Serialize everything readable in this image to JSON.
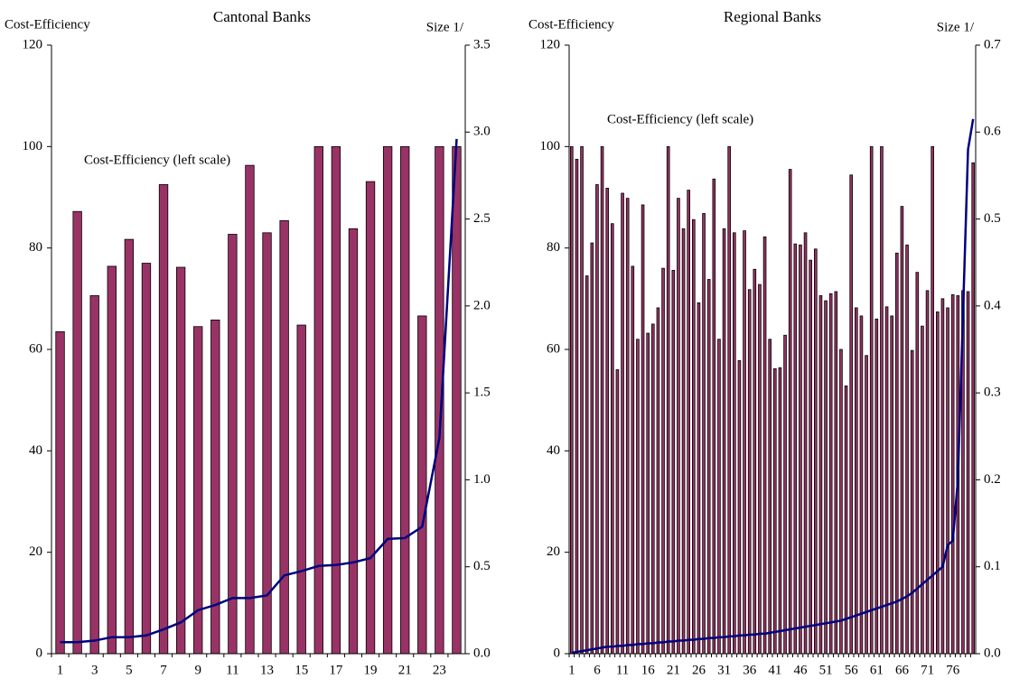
{
  "chart_data": [
    {
      "type": "bar",
      "title": "Cantonal Banks",
      "y_label": "Cost-Efficiency",
      "y2_label": "Size 1/",
      "annotation": "Cost-Efficiency (left scale)",
      "categories": [
        "1",
        null,
        "3",
        null,
        "5",
        null,
        "7",
        null,
        "9",
        null,
        "11",
        null,
        "13",
        null,
        "15",
        null,
        "17",
        null,
        "19",
        null,
        "21",
        null,
        "23",
        null
      ],
      "series": [
        {
          "type": "bar",
          "color": "#993366",
          "values": [
            63.5,
            87.2,
            70.6,
            76.4,
            81.7,
            77,
            92.5,
            76.2,
            64.5,
            65.8,
            82.7,
            96.3,
            83,
            85.4,
            64.8,
            100,
            100,
            83.8,
            93.1,
            100,
            100,
            66.6,
            100,
            100
          ]
        },
        {
          "type": "line",
          "axis": "y2",
          "color": "#000080",
          "values": [
            0.066,
            0.066,
            0.075,
            0.095,
            0.095,
            0.105,
            0.14,
            0.18,
            0.25,
            0.28,
            0.32,
            0.32,
            0.335,
            0.45,
            0.475,
            0.505,
            0.51,
            0.525,
            0.55,
            0.66,
            0.665,
            0.73,
            1.24,
            2.96
          ]
        }
      ],
      "ylim": [
        0,
        120
      ],
      "yticks": [
        0,
        20,
        40,
        60,
        80,
        100,
        120
      ],
      "y2lim": [
        0,
        3.5
      ],
      "y2ticks": [
        {
          "value": 0,
          "label": "0.0"
        },
        0.5,
        {
          "value": 1,
          "label": "1.0"
        },
        1.5,
        {
          "value": 2,
          "label": "2.0"
        },
        2.5,
        {
          "value": 3,
          "label": "3.0"
        },
        3.5
      ],
      "grid": false
    },
    {
      "type": "bar",
      "title": "Regional Banks",
      "y_label": "Cost-Efficiency",
      "y2_label": "Size 1/",
      "annotation": "Cost-Efficiency (left scale)",
      "categories": [
        "1",
        null,
        null,
        null,
        null,
        "6",
        null,
        null,
        null,
        null,
        "11",
        null,
        null,
        null,
        null,
        "16",
        null,
        null,
        null,
        null,
        "21",
        null,
        null,
        null,
        null,
        "26",
        null,
        null,
        null,
        null,
        "31",
        null,
        null,
        null,
        null,
        "36",
        null,
        null,
        null,
        null,
        "41",
        null,
        null,
        null,
        null,
        "46",
        null,
        null,
        null,
        null,
        "51",
        null,
        null,
        null,
        null,
        "56",
        null,
        null,
        null,
        null,
        "61",
        null,
        null,
        null,
        null,
        "66",
        null,
        null,
        null,
        null,
        "71",
        null,
        null,
        null,
        null,
        "76",
        null,
        null,
        null,
        null
      ],
      "series": [
        {
          "type": "bar",
          "color": "#993366",
          "values": [
            100,
            97.5,
            100,
            74.5,
            81,
            92.5,
            100,
            91.8,
            84.8,
            56,
            90.8,
            89.8,
            76.4,
            62,
            88.5,
            63.2,
            65,
            68.2,
            76,
            100,
            75.6,
            89.8,
            83.8,
            91.4,
            85.6,
            69.2,
            86.8,
            73.8,
            93.6,
            62,
            83.8,
            100,
            83,
            57.8,
            83.4,
            71.8,
            75.8,
            72.8,
            82.2,
            62,
            56.2,
            56.4,
            62.8,
            95.5,
            80.8,
            80.6,
            83,
            77.6,
            79.8,
            70.6,
            69.6,
            71,
            71.4,
            60,
            52.8,
            94.4,
            68.2,
            66.6,
            58.8,
            100,
            66,
            100,
            68.4,
            66.6,
            79,
            88.2,
            80.6,
            59.8,
            75.2,
            64.6,
            71.6,
            100,
            67.4,
            70,
            68.2,
            70.8,
            70.6,
            71.6,
            71.4,
            96.8
          ]
        },
        {
          "type": "line",
          "axis": "y2",
          "color": "#000080",
          "values": [
            0.001,
            0.002,
            0.003,
            0.004,
            0.005,
            0.006,
            0.007,
            0.008,
            0.008,
            0.009,
            0.009,
            0.01,
            0.01,
            0.011,
            0.011,
            0.012,
            0.012,
            0.013,
            0.013,
            0.014,
            0.014,
            0.015,
            0.015,
            0.016,
            0.016,
            0.017,
            0.017,
            0.018,
            0.018,
            0.019,
            0.019,
            0.02,
            0.02,
            0.021,
            0.021,
            0.022,
            0.022,
            0.023,
            0.023,
            0.024,
            0.025,
            0.026,
            0.027,
            0.028,
            0.029,
            0.03,
            0.031,
            0.032,
            0.033,
            0.034,
            0.035,
            0.036,
            0.037,
            0.038,
            0.04,
            0.042,
            0.044,
            0.046,
            0.048,
            0.05,
            0.052,
            0.054,
            0.056,
            0.058,
            0.06,
            0.063,
            0.066,
            0.07,
            0.075,
            0.08,
            0.085,
            0.09,
            0.095,
            0.1,
            0.125,
            0.13,
            0.2,
            0.39,
            0.58,
            0.615
          ]
        }
      ],
      "ylim": [
        0,
        120
      ],
      "yticks": [
        0,
        20,
        40,
        60,
        80,
        100,
        120
      ],
      "y2lim": [
        0,
        0.7
      ],
      "y2ticks": [
        {
          "value": 0,
          "label": "0.0"
        },
        0.1,
        0.2,
        0.3,
        0.4,
        0.5,
        0.6,
        0.7
      ],
      "grid": false
    }
  ]
}
